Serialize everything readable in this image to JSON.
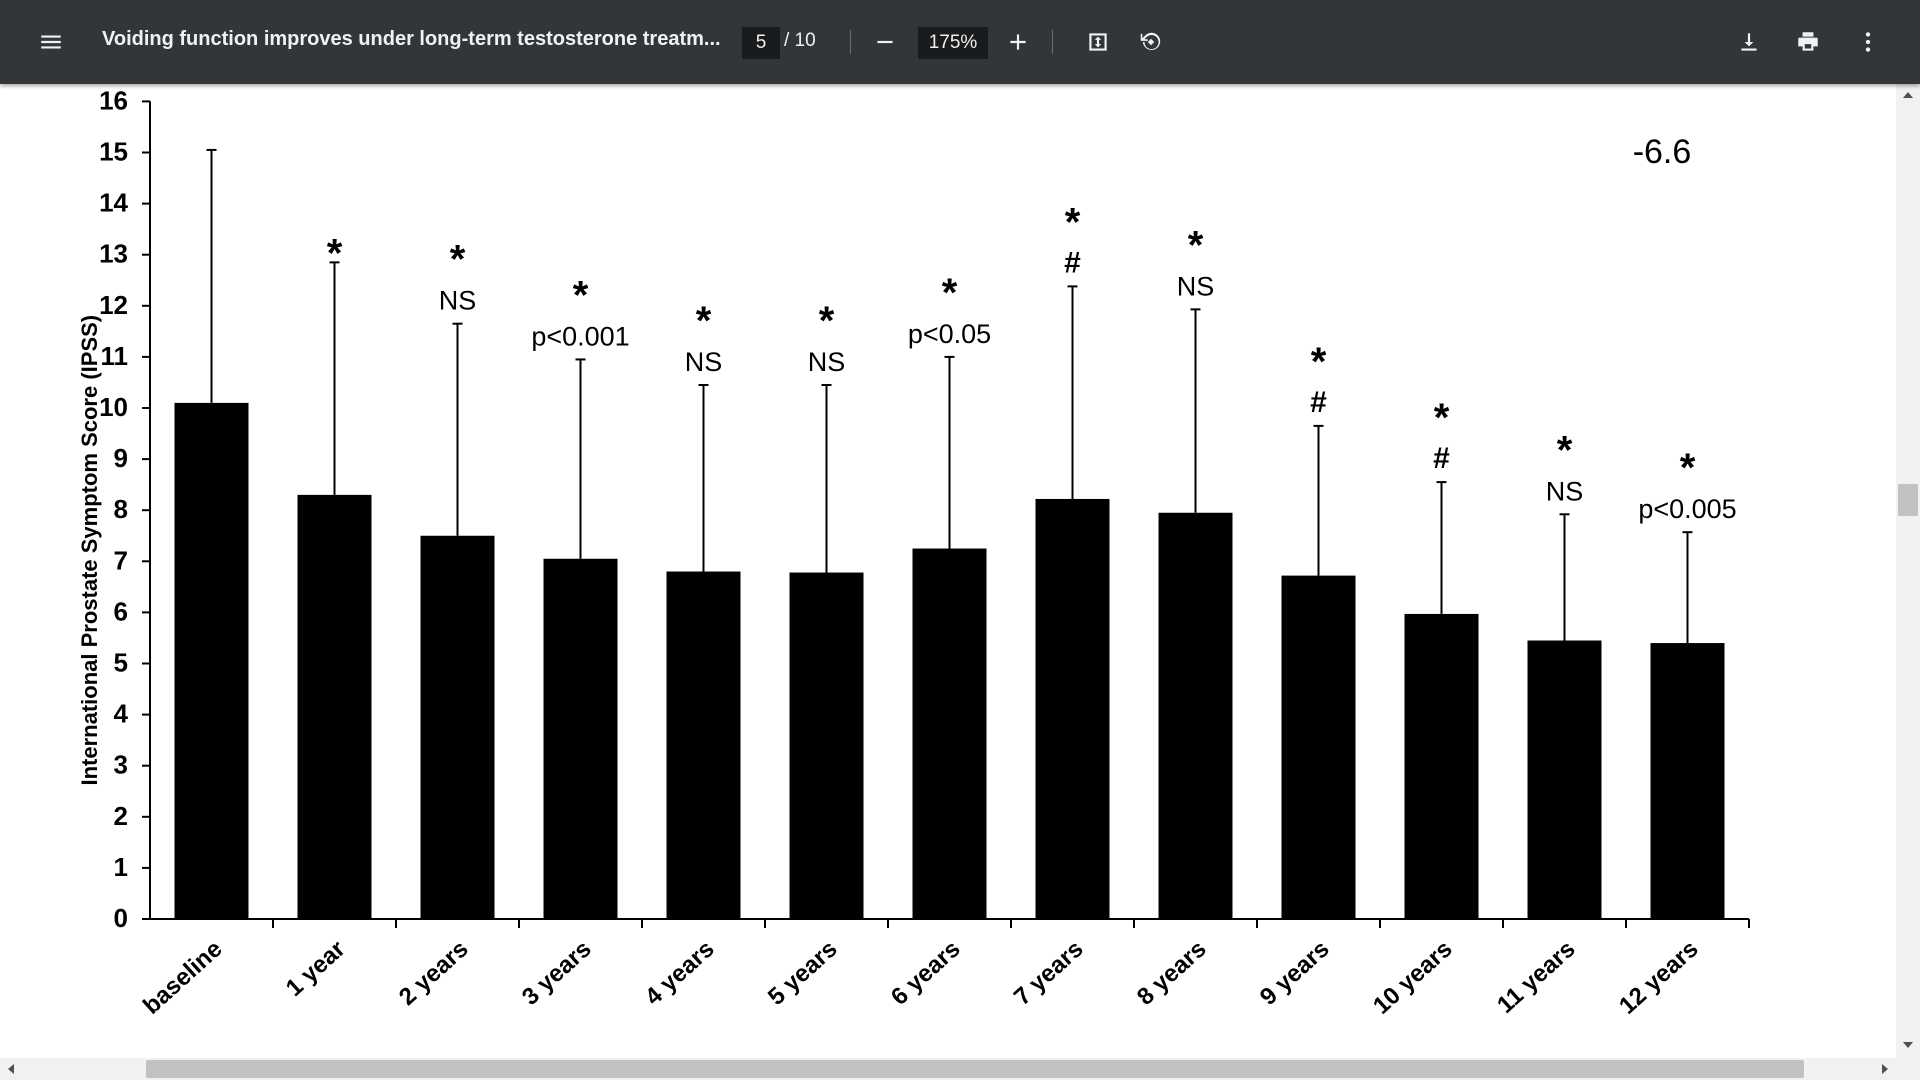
{
  "toolbar": {
    "title": "Voiding function improves under long-term testosterone treatm...",
    "page_current": "5",
    "page_total": "/ 10",
    "zoom": "175%",
    "icons": [
      "menu-icon",
      "zoom-out-icon",
      "zoom-in-icon",
      "fit-page-icon",
      "rotate-icon",
      "download-icon",
      "print-icon",
      "more-options-icon"
    ]
  },
  "chart_data": {
    "type": "bar",
    "ylabel": "International Prostate Symptom Score (IPSS)",
    "ylim": [
      0,
      16
    ],
    "yticks": [
      "0",
      "1",
      "2",
      "3",
      "4",
      "5",
      "6",
      "7",
      "8",
      "9",
      "10",
      "11",
      "12",
      "13",
      "14",
      "15",
      "16"
    ],
    "categories": [
      "baseline",
      "1 year",
      "2 years",
      "3 years",
      "4 years",
      "5 years",
      "6 years",
      "7 years",
      "8 years",
      "9 years",
      "10 years",
      "11 years",
      "12 years"
    ],
    "values": [
      10.1,
      8.3,
      7.5,
      7.05,
      6.8,
      6.78,
      7.25,
      8.22,
      7.95,
      6.72,
      5.97,
      5.45,
      5.4
    ],
    "error_upper": [
      15.05,
      12.85,
      11.65,
      10.95,
      10.45,
      10.45,
      11.0,
      12.38,
      11.93,
      9.65,
      8.55,
      7.92,
      7.57
    ],
    "annotations": [
      [],
      [
        "*"
      ],
      [
        "*",
        "NS"
      ],
      [
        "*",
        "p<0.001"
      ],
      [
        "*",
        "NS"
      ],
      [
        "*",
        "NS"
      ],
      [
        "*",
        "p<0.05"
      ],
      [
        "*",
        "#"
      ],
      [
        "*",
        "NS"
      ],
      [
        "*",
        "#"
      ],
      [
        "*",
        "#"
      ],
      [
        "*",
        "NS"
      ],
      [
        "*",
        "p<0.005"
      ]
    ],
    "corner_label": "-6.6",
    "grid": false
  }
}
